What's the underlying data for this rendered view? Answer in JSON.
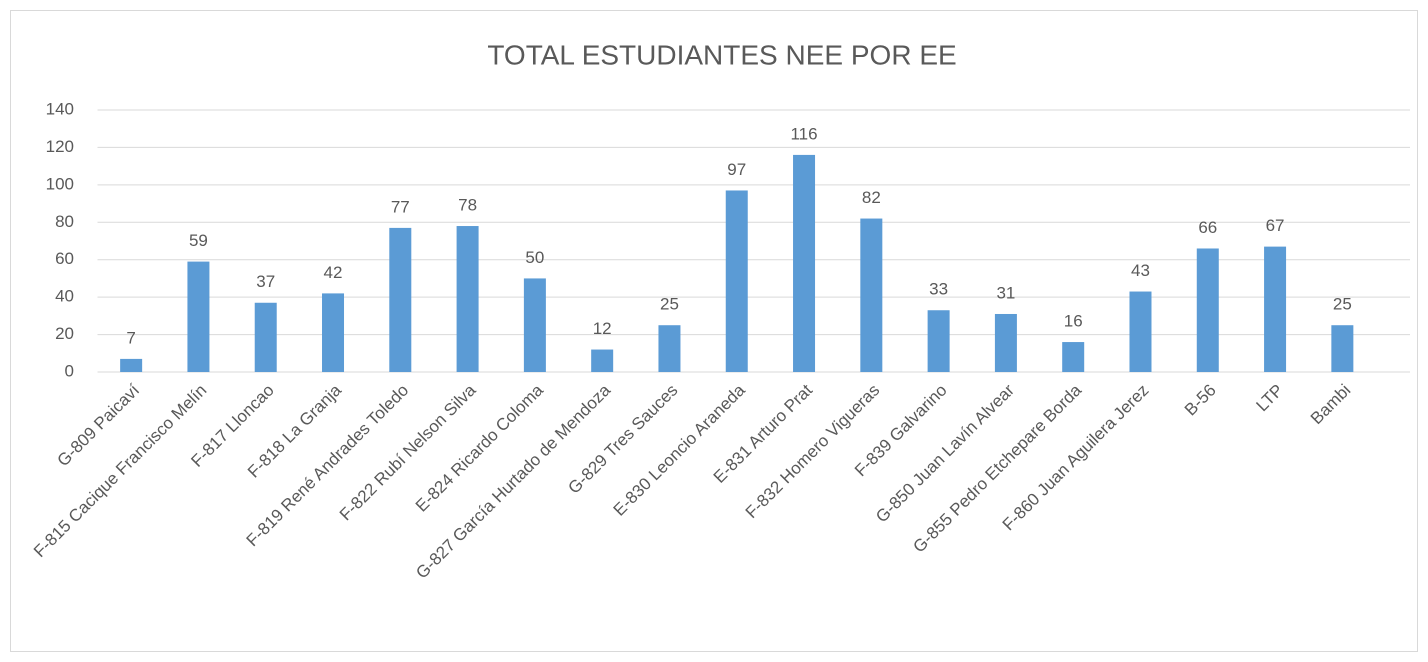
{
  "chart_data": {
    "type": "bar",
    "title": "TOTAL ESTUDIANTES NEE POR EE",
    "categories": [
      "G-809 Paicaví",
      "F-815 Cacique Francisco Melín",
      "F-817 Lloncao",
      "F-818 La Granja",
      "F-819 René Andrades Toledo",
      "F-822 Rubí Nelson Silva",
      "E-824 Ricardo Coloma",
      "G-827 García Hurtado de Mendoza",
      "G-829 Tres Sauces",
      "E-830 Leoncio Araneda",
      "E-831 Arturo Prat",
      "F-832 Homero Vigueras",
      "F-839 Galvarino",
      "G-850 Juan Lavín Alvear",
      "G-855 Pedro Etchepare Borda",
      "F-860 Juan Aguilera Jerez",
      "B-56",
      "LTP",
      "Bambi"
    ],
    "values": [
      7,
      59,
      37,
      42,
      77,
      78,
      50,
      12,
      25,
      97,
      116,
      82,
      33,
      31,
      16,
      43,
      66,
      67,
      25
    ],
    "color": "#5b9bd5",
    "ylim": [
      0,
      140
    ],
    "yticks": [
      0,
      20,
      40,
      60,
      80,
      100,
      120,
      140
    ],
    "grid": true
  }
}
